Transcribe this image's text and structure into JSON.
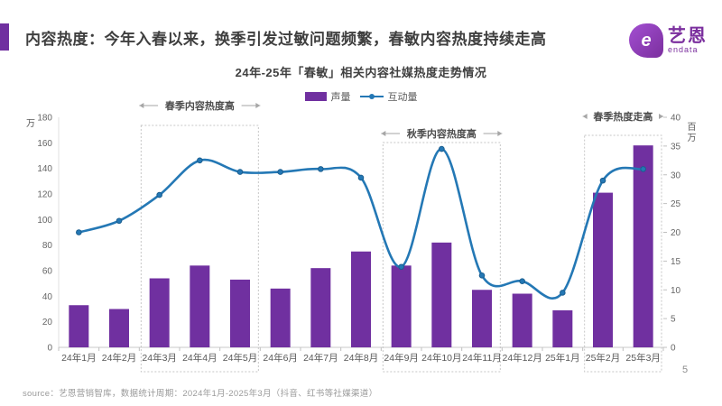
{
  "header": {
    "title": "内容热度：今年入春以来，换季引发过敏问题频繁，春敏内容热度持续走高",
    "accent_color": "#7030A0",
    "logo": {
      "glyph": "e",
      "name": "艺恩",
      "sub": "endata",
      "color": "#7b2f9e"
    }
  },
  "chart_data": {
    "type": "bar+line",
    "title": "24年-25年「春敏」相关内容社媒热度走势情况",
    "categories": [
      "24年1月",
      "24年2月",
      "24年3月",
      "24年4月",
      "24年5月",
      "24年6月",
      "24年7月",
      "24年8月",
      "24年9月",
      "24年10月",
      "24年11月",
      "24年12月",
      "25年1月",
      "25年2月",
      "25年3月"
    ],
    "series": [
      {
        "name": "声量",
        "type": "bar",
        "axis": "left",
        "unit": "万",
        "color": "#7030A0",
        "values": [
          33,
          30,
          54,
          64,
          53,
          46,
          62,
          75,
          64,
          82,
          45,
          42,
          29,
          121,
          158
        ]
      },
      {
        "name": "互动量",
        "type": "line",
        "axis": "right",
        "unit": "百万",
        "color": "#2478B5",
        "values": [
          20,
          22,
          26.5,
          32.5,
          30.5,
          30.5,
          31,
          29.5,
          14,
          34.5,
          12.5,
          11.5,
          9.5,
          29,
          31
        ]
      }
    ],
    "left_axis": {
      "label": "万",
      "min": 0,
      "max": 180,
      "step": 20
    },
    "right_axis": {
      "label": "百万",
      "min": 0,
      "max": 40,
      "step": 5
    },
    "legend_position": "top",
    "grid": false,
    "annotations": [
      {
        "label": "春季内容热度高",
        "from_index": 2,
        "to_index": 4
      },
      {
        "label": "秋季内容热度高",
        "from_index": 8,
        "to_index": 10
      },
      {
        "label": "春季热度走高",
        "from_index": 13,
        "to_index": 14
      }
    ]
  },
  "footer": {
    "source": "source：艺恩营销智库，数据统计周期：2024年1月-2025年3月（抖音、红书等社媒渠道）",
    "page": "5"
  }
}
